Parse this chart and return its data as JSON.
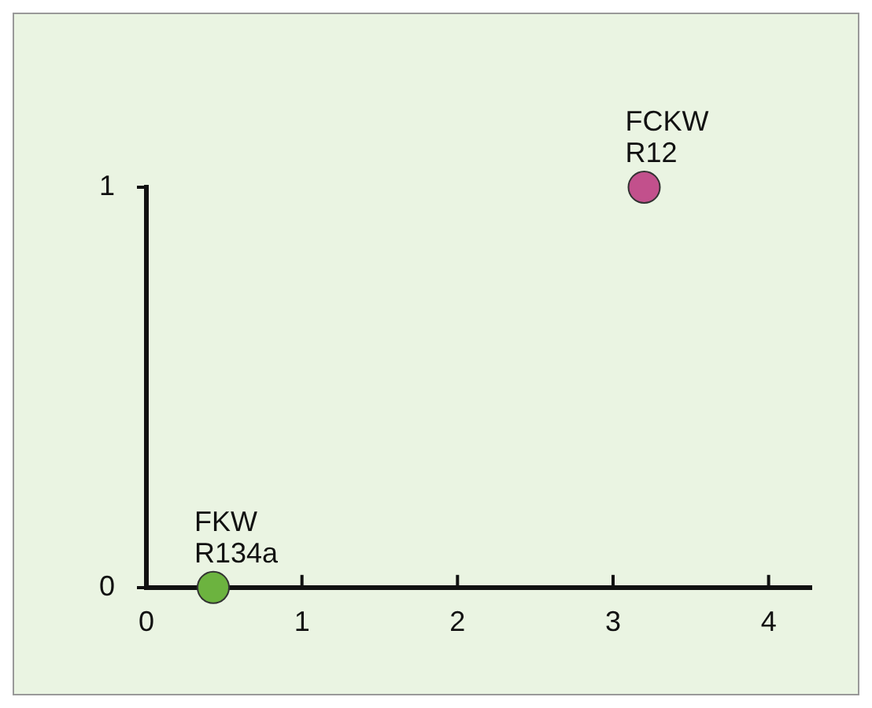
{
  "chart_data": {
    "type": "scatter",
    "x": [
      0.43,
      3.2
    ],
    "values": [
      0,
      1
    ],
    "colors": [
      "#6cb33f",
      "#c2508c"
    ],
    "xlim": [
      0,
      4.27
    ],
    "ylim": [
      0,
      1
    ],
    "xticks": [
      0,
      1,
      2,
      3,
      4
    ],
    "yticks": [
      0,
      1
    ],
    "grid": false,
    "legend": false,
    "marker": "circle",
    "annotations": [
      {
        "text": "FKW\nR134a",
        "x": 0.43,
        "y": 0
      },
      {
        "text": "FCKW\nR12",
        "x": 3.2,
        "y": 1
      }
    ]
  }
}
